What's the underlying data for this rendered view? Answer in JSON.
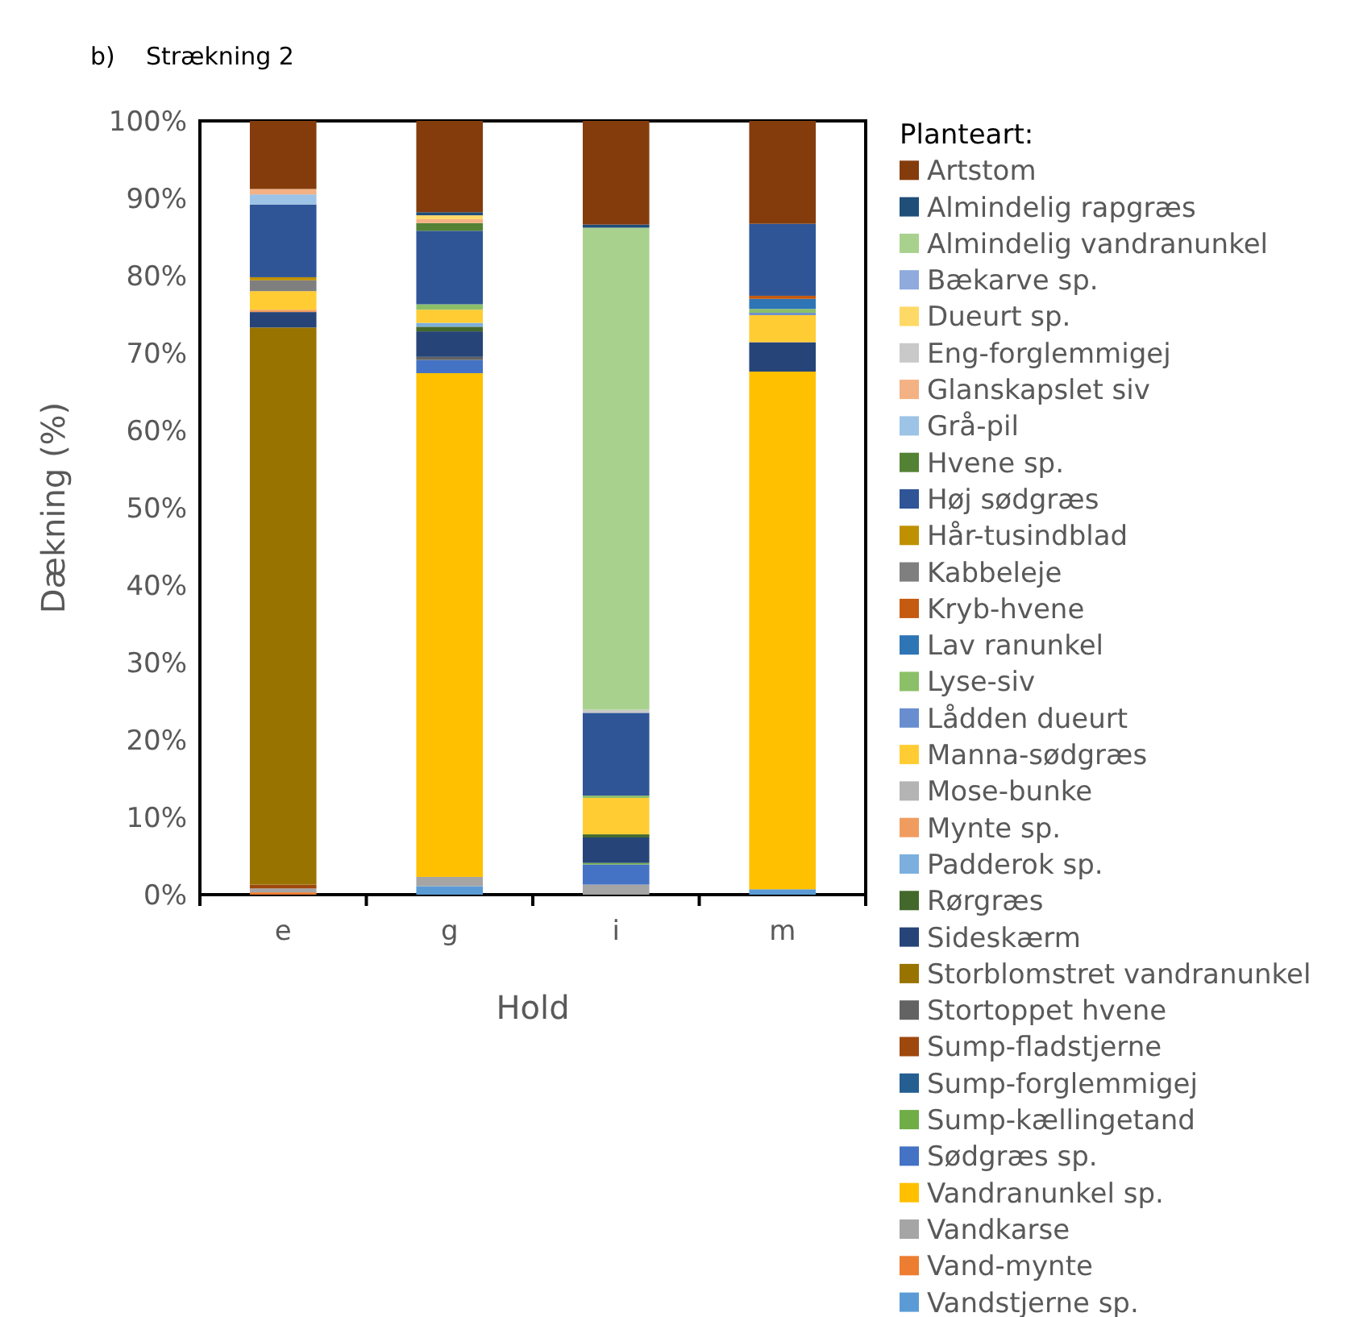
{
  "chart_data": {
    "type": "bar",
    "stacked": true,
    "title": "b)    Strækning 2",
    "xlabel": "Hold",
    "ylabel": "Dækning (%)",
    "legend_title": "Planteart:",
    "legend": "right",
    "categories": [
      "e",
      "g",
      "i",
      "m"
    ],
    "ylim": [
      0,
      100
    ],
    "yticks": [
      {
        "value": 0,
        "label": "0%"
      },
      {
        "value": 10,
        "label": "10%"
      },
      {
        "value": 20,
        "label": "20%"
      },
      {
        "value": 30,
        "label": "30%"
      },
      {
        "value": 40,
        "label": "40%"
      },
      {
        "value": 50,
        "label": "50%"
      },
      {
        "value": 60,
        "label": "60%"
      },
      {
        "value": 70,
        "label": "70%"
      },
      {
        "value": 80,
        "label": "80%"
      },
      {
        "value": 90,
        "label": "90%"
      },
      {
        "value": 100,
        "label": "100%"
      }
    ],
    "series": [
      {
        "name": "Vandstjerne sp.",
        "color": "#5b9bd5",
        "values": [
          0,
          1.1,
          0,
          0.7
        ]
      },
      {
        "name": "Vand-mynte",
        "color": "#ed7d31",
        "values": [
          0.3,
          0,
          0,
          0
        ]
      },
      {
        "name": "Vandkarse",
        "color": "#a5a5a5",
        "values": [
          0.5,
          1.2,
          1.3,
          0
        ]
      },
      {
        "name": "Vandranunkel sp.",
        "color": "#ffc000",
        "values": [
          0,
          65.1,
          0,
          66.9
        ]
      },
      {
        "name": "Sødgræs sp.",
        "color": "#4472c4",
        "values": [
          0,
          1.7,
          2.6,
          0
        ]
      },
      {
        "name": "Sump-kællingetand",
        "color": "#70ad47",
        "values": [
          0,
          0,
          0.2,
          0
        ]
      },
      {
        "name": "Sump-forglemmigej",
        "color": "#255e91",
        "values": [
          0,
          0,
          0,
          0
        ]
      },
      {
        "name": "Sump-fladstjerne",
        "color": "#9e480e",
        "values": [
          0.5,
          0,
          0,
          0
        ]
      },
      {
        "name": "Stortoppet hvene",
        "color": "#636363",
        "values": [
          0,
          0.4,
          0,
          0
        ]
      },
      {
        "name": "Storblomstret vandranunkel",
        "color": "#997300",
        "values": [
          72,
          0,
          0,
          0
        ]
      },
      {
        "name": "Sideskærm",
        "color": "#264478",
        "values": [
          2,
          3.3,
          3.3,
          3.8
        ]
      },
      {
        "name": "Rørgræs",
        "color": "#43682b",
        "values": [
          0,
          0.6,
          0.4,
          0
        ]
      },
      {
        "name": "Padderok sp.",
        "color": "#7cafdd",
        "values": [
          0,
          0.5,
          0,
          0
        ]
      },
      {
        "name": "Mynte sp.",
        "color": "#f19c5f",
        "values": [
          0.3,
          0,
          0,
          0
        ]
      },
      {
        "name": "Mose-bunke",
        "color": "#b4b4b4",
        "values": [
          0,
          0,
          0,
          0
        ]
      },
      {
        "name": "Manna-sødgræs",
        "color": "#ffcd33",
        "values": [
          2.4,
          1.7,
          4.7,
          3.5
        ]
      },
      {
        "name": "Lådden dueurt",
        "color": "#698ed0",
        "values": [
          0,
          0,
          0,
          0.3
        ]
      },
      {
        "name": "Lyse-siv",
        "color": "#8cc068",
        "values": [
          0,
          0.7,
          0.3,
          0.5
        ]
      },
      {
        "name": "Lav ranunkel",
        "color": "#2e75b6",
        "values": [
          0,
          0,
          0,
          1.3
        ]
      },
      {
        "name": "Kryb-hvene",
        "color": "#c55a11",
        "values": [
          0,
          0,
          0,
          0.4
        ]
      },
      {
        "name": "Kabbeleje",
        "color": "#7f7f7f",
        "values": [
          1.4,
          0,
          0,
          0
        ]
      },
      {
        "name": "Hår-tusindblad",
        "color": "#bf9000",
        "values": [
          0.4,
          0,
          0,
          0
        ]
      },
      {
        "name": "Høj sødgræs",
        "color": "#2f5597",
        "values": [
          9.4,
          9.5,
          10.7,
          9.3
        ]
      },
      {
        "name": "Hvene sp.",
        "color": "#548235",
        "values": [
          0,
          1,
          0,
          0
        ]
      },
      {
        "name": "Grå-pil",
        "color": "#9dc3e6",
        "values": [
          1.3,
          0,
          0,
          0
        ]
      },
      {
        "name": "Glanskapslet siv",
        "color": "#f4b183",
        "values": [
          0.7,
          0.5,
          0,
          0
        ]
      },
      {
        "name": "Eng-forglemmigej",
        "color": "#c9c9c9",
        "values": [
          0,
          0,
          0.4,
          0
        ]
      },
      {
        "name": "Dueurt sp.",
        "color": "#ffd966",
        "values": [
          0,
          0.5,
          0,
          0
        ]
      },
      {
        "name": "Bækarve sp.",
        "color": "#8faadc",
        "values": [
          0,
          0,
          0,
          0
        ]
      },
      {
        "name": "Almindelig vandranunkel",
        "color": "#a9d18e",
        "values": [
          0,
          0,
          62.3,
          0
        ]
      },
      {
        "name": "Almindelig rapgræs",
        "color": "#1f4e79",
        "values": [
          0,
          0.4,
          0.4,
          0
        ]
      },
      {
        "name": "Artstom",
        "color": "#843c0c",
        "values": [
          8.8,
          11.8,
          13.4,
          13.3
        ]
      }
    ]
  }
}
